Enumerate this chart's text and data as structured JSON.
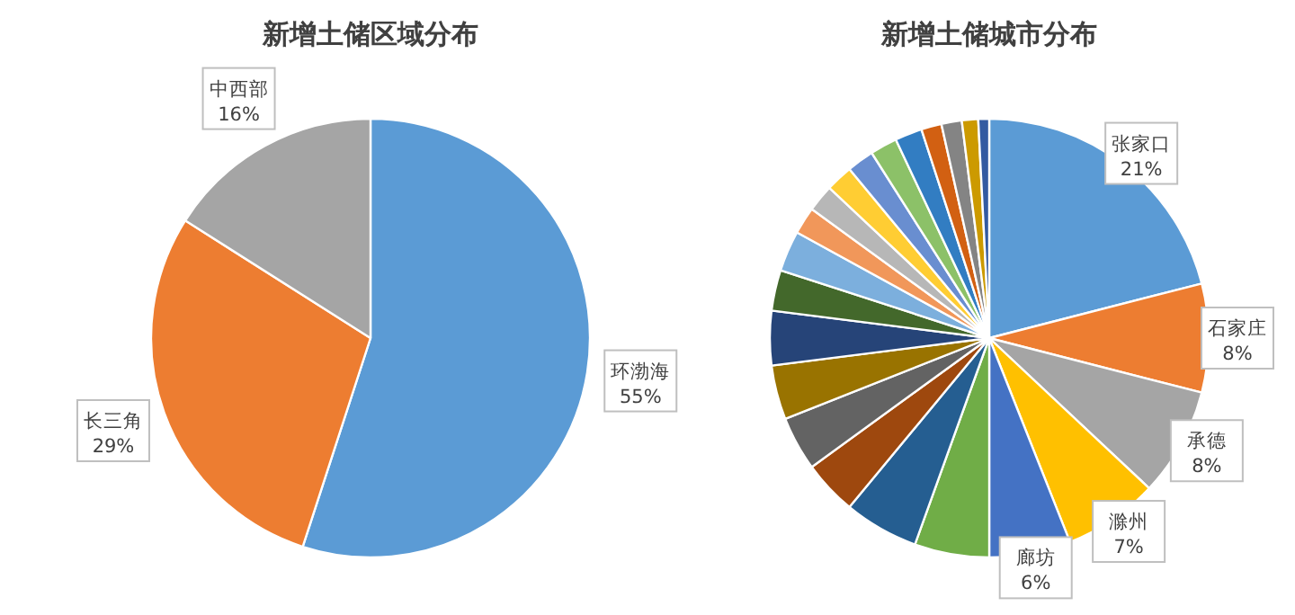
{
  "chart_data": [
    {
      "type": "pie",
      "title": "新增土储区域分布",
      "categories": [
        "环渤海",
        "长三角",
        "中西部"
      ],
      "values": [
        55,
        29,
        16
      ],
      "colors": [
        "#5b9bd5",
        "#ed7d31",
        "#a5a5a5"
      ],
      "value_labels": [
        "55%",
        "29%",
        "16%"
      ]
    },
    {
      "type": "pie",
      "title": "新增土储城市分布",
      "categories": [
        "张家口",
        "石家庄",
        "承德",
        "滁州",
        "廊坊",
        null,
        null,
        null,
        null,
        null,
        null,
        null,
        null,
        null,
        null,
        null,
        null,
        null,
        null,
        null,
        null,
        null,
        null
      ],
      "values": [
        21,
        8,
        8,
        7,
        6,
        5.5,
        5.5,
        4,
        4,
        4,
        4,
        3,
        3,
        2,
        2,
        2,
        2,
        2,
        2,
        1.5,
        1.5,
        1.2,
        0.8
      ],
      "value_labels": [
        "21%",
        "8%",
        "8%",
        "7%",
        "6%",
        null,
        null,
        null,
        null,
        null,
        null,
        null,
        null,
        null,
        null,
        null,
        null,
        null,
        null,
        null,
        null,
        null,
        null
      ],
      "colors": [
        "#5b9bd5",
        "#ed7d31",
        "#a5a5a5",
        "#ffc000",
        "#4472c4",
        "#70ad47",
        "#255e91",
        "#9e480e",
        "#636363",
        "#997300",
        "#264478",
        "#43682b",
        "#7cafdd",
        "#f1975a",
        "#b7b7b7",
        "#ffcd33",
        "#698ed0",
        "#8cc168",
        "#327dc2",
        "#d26012",
        "#848484",
        "#cc9a00",
        "#335aa1"
      ]
    }
  ]
}
